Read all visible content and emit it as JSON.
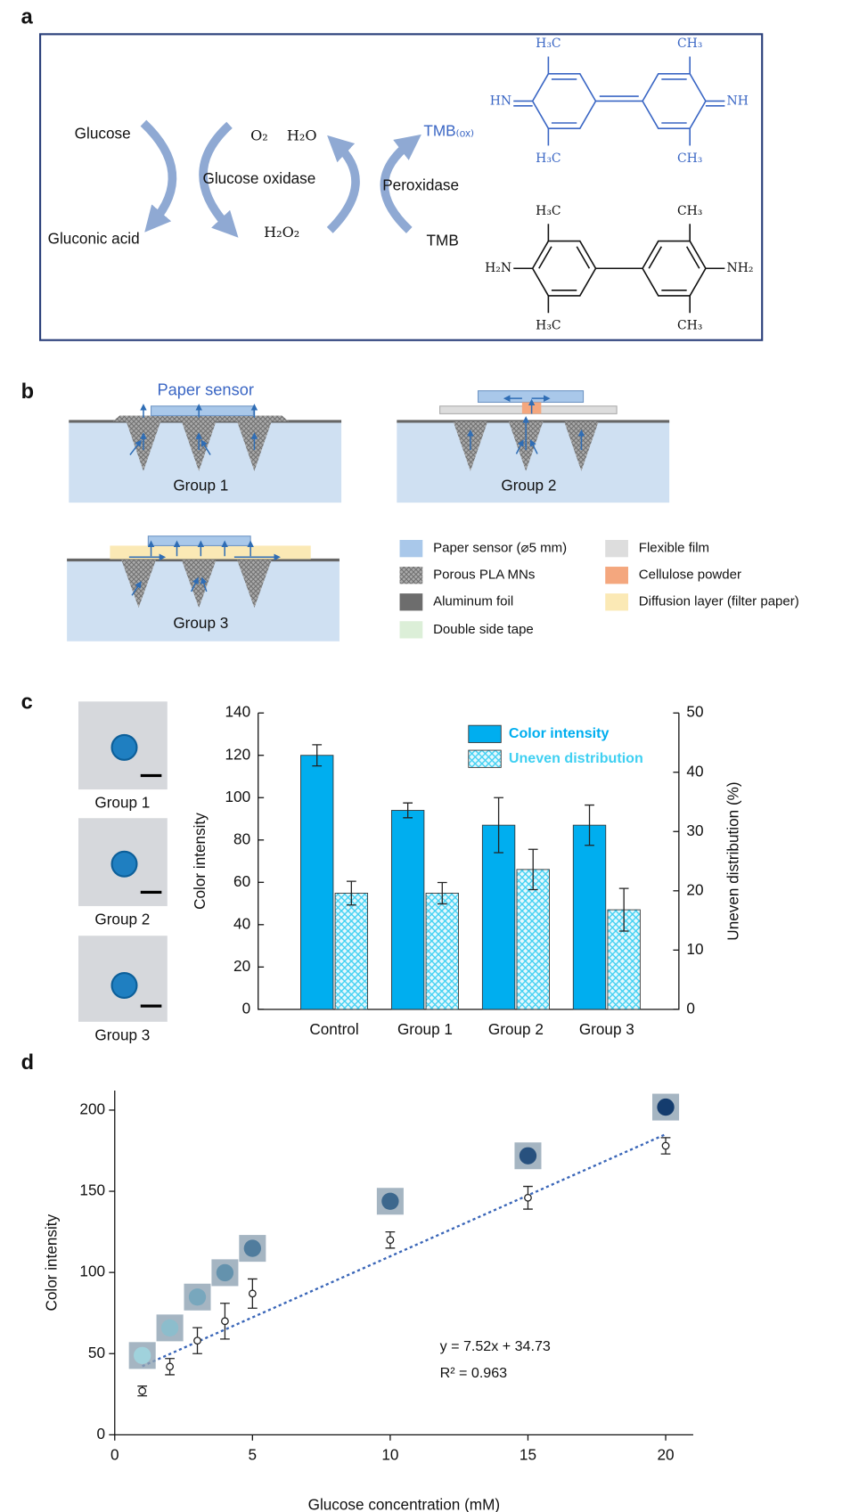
{
  "panel_labels": [
    "a",
    "b",
    "c",
    "d"
  ],
  "reaction": {
    "glucose": "Glucose",
    "gluconic_acid": "Gluconic acid",
    "o2": "O₂",
    "h2o": "H₂O",
    "enzyme1": "Glucose oxidase",
    "h2o2": "H₂O₂",
    "tmb_ox": "TMB₍ₒₓ₎",
    "enzyme2": "Peroxidase",
    "tmb": "TMB"
  },
  "structures": {
    "oxidized": {
      "tl": "H₃C",
      "tr": "CH₃",
      "l": "HN",
      "r": "NH",
      "bl": "H₃C",
      "br": "CH₃"
    },
    "reduced": {
      "tl": "H₃C",
      "tr": "CH₃",
      "l": "H₂N",
      "r": "NH₂",
      "bl": "H₃C",
      "br": "CH₃"
    }
  },
  "setup": {
    "sensor_label": "Paper sensor",
    "groups": [
      "Group 1",
      "Group 2",
      "Group 3"
    ],
    "legend": [
      "Paper sensor (⌀5 mm)",
      "Porous PLA MNs",
      "Aluminum foil",
      "Double side tape",
      "Flexible film",
      "Cellulose powder",
      "Diffusion layer (filter paper)"
    ]
  },
  "photos": {
    "labels": [
      "Group 1",
      "Group 2",
      "Group 3"
    ]
  },
  "chart_data": [
    {
      "type": "bar",
      "categories": [
        "Control",
        "Group 1",
        "Group 2",
        "Group 3"
      ],
      "ylabel": "Color intensity",
      "y2label": "Uneven distribution (%)",
      "ylim": [
        0,
        140
      ],
      "yticks": [
        0,
        20,
        40,
        60,
        80,
        100,
        120,
        140
      ],
      "y2lim": [
        0,
        50
      ],
      "y2ticks": [
        0,
        10,
        20,
        30,
        40,
        50
      ],
      "series": [
        {
          "name": "Color intensity",
          "color": "#00aeef",
          "values": [
            120,
            94,
            87,
            87
          ],
          "errors": [
            5,
            3.5,
            13,
            9.5
          ]
        },
        {
          "name": "Uneven distribution",
          "color": "#3fd0f2",
          "values": [
            19.6,
            19.6,
            23.6,
            16.8
          ],
          "errors": [
            2,
            1.8,
            3.4,
            3.6
          ],
          "axis": "y2",
          "hatch": true
        }
      ],
      "legend": "upper right"
    },
    {
      "type": "scatter",
      "xlabel": "Glucose concentration (mM)",
      "ylabel": "Color intensity",
      "x": [
        1,
        2,
        3,
        4,
        5,
        10,
        15,
        20
      ],
      "values": [
        27,
        42,
        58,
        70,
        87,
        120,
        146,
        178
      ],
      "errors": [
        3,
        5,
        8,
        11,
        9,
        5,
        7,
        5
      ],
      "xlim": [
        0,
        21
      ],
      "xticks": [
        0,
        5,
        10,
        15,
        20
      ],
      "ylim": [
        0,
        212
      ],
      "yticks": [
        0,
        50,
        100,
        150,
        200
      ],
      "fit_slope": 7.52,
      "fit_intercept": 34.73,
      "fit_color": "#3a66b8",
      "annotations": [
        "y = 7.52x + 34.73",
        "R² = 0.963"
      ]
    }
  ]
}
